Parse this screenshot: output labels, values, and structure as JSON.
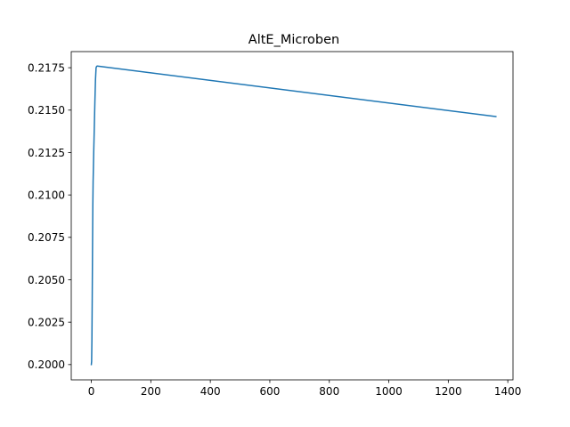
{
  "chart_data": {
    "type": "line",
    "title": "AltE_Microben",
    "xlabel": "",
    "ylabel": "",
    "xlim": [
      -67.5,
      1417.5
    ],
    "ylim": [
      0.1991,
      0.21845
    ],
    "x_ticks": [
      0,
      200,
      400,
      600,
      800,
      1000,
      1200,
      1400
    ],
    "x_tick_labels": [
      "0",
      "200",
      "400",
      "600",
      "800",
      "1000",
      "1200",
      "1400"
    ],
    "y_ticks": [
      0.2,
      0.2025,
      0.205,
      0.2075,
      0.21,
      0.2125,
      0.215,
      0.2175
    ],
    "y_tick_labels": [
      "0.2000",
      "0.2025",
      "0.2050",
      "0.2075",
      "0.2100",
      "0.2125",
      "0.2150",
      "0.2175"
    ],
    "grid": false,
    "legend": "none",
    "series": [
      {
        "color": "#1f77b4",
        "x": [
          0,
          1,
          2,
          3,
          4,
          5,
          6,
          8,
          10,
          12,
          14,
          16,
          18,
          20,
          1360
        ],
        "y": [
          0.2,
          0.2002,
          0.2015,
          0.204,
          0.2068,
          0.2093,
          0.2108,
          0.2125,
          0.214,
          0.2155,
          0.2168,
          0.2175,
          0.21758,
          0.2176,
          0.21462
        ]
      }
    ]
  }
}
